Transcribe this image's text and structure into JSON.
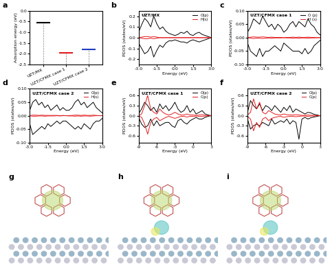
{
  "chart_data": [
    {
      "type": "level",
      "title": "a",
      "ylabel": "Adsorption energy (eV)",
      "categories": [
        "UZT/MX",
        "UZT/CFMX case 1",
        "UZT/CFMX case 2"
      ],
      "values": [
        -0.55,
        -1.95,
        -1.8
      ],
      "colors": [
        "#000000",
        "#e41a1c",
        "#1f3fbf"
      ],
      "ylim": [
        -2.5,
        0.0
      ],
      "yticks": [
        -2.5,
        -2.0,
        -1.5,
        -1.0,
        -0.5,
        0.0
      ]
    },
    {
      "type": "line",
      "title": "b",
      "annotations": [
        "UZT/MX"
      ],
      "xlabel": "Energy (eV)",
      "ylabel": "PDOS (states/eV)",
      "x": [
        -3.0,
        -2.75,
        -2.5,
        -2.25,
        -2.0,
        -1.75,
        -1.5,
        -1.25,
        -1.0,
        -0.75,
        -0.5,
        -0.25,
        0.0,
        0.25,
        0.5,
        0.75,
        1.0,
        1.25,
        1.5,
        1.75,
        2.0,
        2.25,
        2.5,
        2.75,
        3.0
      ],
      "series": [
        {
          "name": "O(p)",
          "color": "#000000",
          "values": [
            0.05,
            0.12,
            0.18,
            0.15,
            0.1,
            0.2,
            0.13,
            0.08,
            0.1,
            0.06,
            0.04,
            0.03,
            0.02,
            0.03,
            0.05,
            0.04,
            0.06,
            0.03,
            0.02,
            0.04,
            0.05,
            0.03,
            0.02,
            0.01,
            0.0
          ],
          "values_down": [
            -0.05,
            -0.1,
            -0.15,
            -0.13,
            -0.08,
            -0.18,
            -0.12,
            -0.07,
            -0.09,
            -0.05,
            -0.03,
            -0.03,
            -0.02,
            -0.03,
            -0.04,
            -0.04,
            -0.05,
            -0.03,
            -0.02,
            -0.03,
            -0.04,
            -0.03,
            -0.02,
            -0.01,
            0.0
          ]
        },
        {
          "name": "H(s)",
          "color": "#e41a1c",
          "values": [
            0.0,
            0.005,
            0.01,
            0.01,
            0.005,
            0.01,
            0.005,
            0.0,
            0.0,
            0.0,
            0.0,
            0.0,
            0.0,
            0.0,
            0.0,
            0.0,
            0.0,
            0.0,
            0.0,
            0.0,
            0.0,
            0.0,
            0.0,
            0.0,
            0.0
          ],
          "values_down": [
            0.0,
            -0.005,
            -0.01,
            -0.01,
            -0.005,
            -0.01,
            -0.005,
            0.0,
            0.0,
            0.0,
            0.0,
            0.0,
            0.0,
            0.0,
            0.0,
            0.0,
            0.0,
            0.0,
            0.0,
            0.0,
            0.0,
            0.0,
            0.0,
            0.0,
            0.0
          ]
        }
      ],
      "xlim": [
        -3.0,
        3.0
      ],
      "xticks": [
        -3.0,
        -1.5,
        0.0,
        1.5,
        3.0
      ],
      "ylim": [
        -0.25,
        0.25
      ],
      "yticks": [
        -0.2,
        -0.1,
        0.0,
        0.1,
        0.2
      ],
      "legend": "upper right"
    },
    {
      "type": "line",
      "title": "c",
      "annotations": [
        "UZT/CFMX case 1"
      ],
      "xlabel": "Energy (eV)",
      "ylabel": "PDOS (states/eV)",
      "x": [
        -3.0,
        -2.75,
        -2.5,
        -2.25,
        -2.0,
        -1.75,
        -1.5,
        -1.25,
        -1.0,
        -0.75,
        -0.5,
        -0.25,
        0.0,
        0.25,
        0.5,
        0.75,
        1.0,
        1.25,
        1.5,
        1.75,
        2.0,
        2.25,
        2.5,
        2.75,
        3.0
      ],
      "series": [
        {
          "name": "O (p)",
          "color": "#000000",
          "values": [
            0.02,
            0.04,
            0.07,
            0.06,
            0.05,
            0.08,
            0.06,
            0.04,
            0.05,
            0.03,
            0.05,
            0.04,
            0.02,
            0.03,
            0.05,
            0.06,
            0.04,
            0.06,
            0.05,
            0.04,
            0.07,
            0.05,
            0.04,
            0.02,
            0.01
          ],
          "values_down": [
            -0.02,
            -0.05,
            -0.06,
            -0.07,
            -0.04,
            -0.07,
            -0.05,
            -0.05,
            -0.04,
            -0.03,
            -0.04,
            -0.05,
            -0.02,
            -0.03,
            -0.04,
            -0.05,
            -0.05,
            -0.05,
            -0.06,
            -0.04,
            -0.06,
            -0.05,
            -0.03,
            -0.02,
            -0.01
          ]
        },
        {
          "name": "H (s)",
          "color": "#e41a1c",
          "values": [
            0.0,
            0.002,
            0.003,
            0.002,
            0.002,
            0.003,
            0.002,
            0.001,
            0.002,
            0.001,
            0.001,
            0.001,
            0.0,
            0.001,
            0.001,
            0.002,
            0.001,
            0.002,
            0.001,
            0.001,
            0.002,
            0.001,
            0.001,
            0.0,
            0.0
          ],
          "values_down": [
            0.0,
            -0.002,
            -0.003,
            -0.002,
            -0.002,
            -0.003,
            -0.002,
            -0.001,
            -0.002,
            -0.001,
            -0.001,
            -0.001,
            0.0,
            -0.001,
            -0.001,
            -0.002,
            -0.001,
            -0.002,
            -0.001,
            -0.001,
            -0.002,
            -0.001,
            -0.001,
            0.0,
            0.0
          ]
        }
      ],
      "xlim": [
        -3.0,
        3.0
      ],
      "xticks": [
        -3.0,
        -1.5,
        0.0,
        1.5,
        3.0
      ],
      "ylim": [
        -0.1,
        0.1
      ],
      "yticks": [
        {
          "value": -0.1,
          "label": "-0.10"
        },
        -0.05,
        {
          "value": 0.0,
          "label": "0.00"
        },
        0.05,
        {
          "value": 0.1,
          "label": "0.10"
        }
      ],
      "legend": "upper right"
    },
    {
      "type": "line",
      "title": "d",
      "annotations": [
        "UZT/CFMX case 2"
      ],
      "xlabel": "Energy (eV)",
      "ylabel": "PDOS (states/eV)",
      "x": [
        -3.0,
        -2.75,
        -2.5,
        -2.25,
        -2.0,
        -1.75,
        -1.5,
        -1.25,
        -1.0,
        -0.75,
        -0.5,
        -0.25,
        0.0,
        0.25,
        0.5,
        0.75,
        1.0,
        1.25,
        1.5,
        1.75,
        2.0,
        2.25,
        2.5,
        2.75,
        3.0
      ],
      "series": [
        {
          "name": "O(p)",
          "color": "#000000",
          "values": [
            0.02,
            0.05,
            0.06,
            0.04,
            0.05,
            0.03,
            0.04,
            0.02,
            0.03,
            0.04,
            0.02,
            0.03,
            0.02,
            0.02,
            0.03,
            0.05,
            0.06,
            0.04,
            0.05,
            0.03,
            0.04,
            0.05,
            0.03,
            0.02,
            0.01
          ],
          "values_down": [
            -0.03,
            -0.07,
            -0.06,
            -0.05,
            -0.04,
            -0.05,
            -0.03,
            -0.04,
            -0.03,
            -0.02,
            -0.03,
            -0.02,
            -0.02,
            -0.03,
            -0.04,
            -0.05,
            -0.04,
            -0.05,
            -0.03,
            -0.04,
            -0.05,
            -0.03,
            -0.02,
            -0.02,
            -0.01
          ]
        },
        {
          "name": "H(s)",
          "color": "#e41a1c",
          "values": [
            0.0,
            0.002,
            0.002,
            0.001,
            0.002,
            0.001,
            0.001,
            0.001,
            0.001,
            0.001,
            0.0,
            0.001,
            0.0,
            0.0,
            0.001,
            0.002,
            0.002,
            0.001,
            0.002,
            0.001,
            0.001,
            0.002,
            0.001,
            0.0,
            0.0
          ],
          "values_down": [
            0.0,
            -0.002,
            -0.002,
            -0.001,
            -0.001,
            -0.002,
            -0.001,
            -0.001,
            -0.001,
            0.0,
            -0.001,
            0.0,
            0.0,
            -0.001,
            -0.001,
            -0.002,
            -0.001,
            -0.002,
            -0.001,
            -0.001,
            -0.002,
            -0.001,
            0.0,
            0.0,
            0.0
          ]
        }
      ],
      "xlim": [
        -3.0,
        3.0
      ],
      "xticks": [
        -3.0,
        -1.5,
        0.0,
        1.5,
        3.0
      ],
      "ylim": [
        -0.1,
        0.1
      ],
      "yticks": [
        {
          "value": -0.1,
          "label": "-0.10"
        },
        -0.05,
        {
          "value": 0.0,
          "label": "0.00"
        },
        0.05,
        {
          "value": 0.1,
          "label": "0.10"
        }
      ],
      "legend": "upper right"
    },
    {
      "type": "line",
      "title": "e",
      "annotations": [
        "UZT/CFMX case 1"
      ],
      "xlabel": "Energy (eV)",
      "ylabel": "PDOS (states/eV)",
      "x": [
        -9.0,
        -8.5,
        -8.0,
        -7.5,
        -7.0,
        -6.5,
        -6.0,
        -5.5,
        -5.0,
        -4.5,
        -4.0,
        -3.5,
        -3.0,
        -2.5,
        -2.0,
        -1.5,
        -1.0,
        -0.5,
        0.0,
        0.5,
        1.0,
        1.5,
        2.0,
        2.5,
        3.0
      ],
      "series": [
        {
          "name": "O(p)",
          "color": "#000000",
          "values": [
            0.05,
            0.2,
            0.4,
            0.3,
            0.15,
            0.25,
            0.1,
            0.35,
            0.2,
            0.3,
            0.15,
            0.25,
            0.4,
            0.2,
            0.1,
            0.15,
            0.3,
            0.1,
            0.2,
            0.05,
            0.1,
            0.15,
            0.05,
            0.02,
            0.0
          ],
          "values_down": [
            -0.05,
            -0.25,
            -0.35,
            -0.3,
            -0.1,
            -0.3,
            -0.15,
            -0.3,
            -0.25,
            -0.2,
            -0.2,
            -0.3,
            -0.35,
            -0.15,
            -0.1,
            -0.2,
            -0.25,
            -0.15,
            -0.1,
            -0.05,
            -0.1,
            -0.1,
            -0.05,
            -0.02,
            0.0
          ]
        },
        {
          "name": "C(p)",
          "color": "#e41a1c",
          "values": [
            0.0,
            0.05,
            0.3,
            0.6,
            0.2,
            0.1,
            0.05,
            0.2,
            0.1,
            0.05,
            0.02,
            0.05,
            0.1,
            0.05,
            0.02,
            0.02,
            0.05,
            0.02,
            0.02,
            0.01,
            0.02,
            0.03,
            0.01,
            0.0,
            0.0
          ],
          "values_down": [
            0.0,
            -0.05,
            -0.25,
            -0.55,
            -0.2,
            -0.1,
            -0.05,
            -0.15,
            -0.1,
            -0.05,
            -0.02,
            -0.05,
            -0.08,
            -0.05,
            -0.02,
            -0.02,
            -0.04,
            -0.02,
            -0.02,
            -0.01,
            -0.02,
            -0.02,
            -0.01,
            0.0,
            0.0
          ]
        }
      ],
      "xlim": [
        -9.0,
        3.0
      ],
      "xticks": [
        -9,
        -6,
        -3,
        0,
        3
      ],
      "ylim": [
        -0.8,
        0.8
      ],
      "yticks": [
        -0.6,
        -0.3,
        0.0,
        0.3,
        0.6
      ],
      "legend": "upper right"
    },
    {
      "type": "line",
      "title": "f",
      "annotations": [
        "UZT/CFMX case 2"
      ],
      "xlabel": "Energy (eV)",
      "ylabel": "PDOS (states/eV)",
      "x": [
        -9.0,
        -8.5,
        -8.0,
        -7.5,
        -7.0,
        -6.5,
        -6.0,
        -5.5,
        -5.0,
        -4.5,
        -4.0,
        -3.5,
        -3.0,
        -2.5,
        -2.0,
        -1.5,
        -1.0,
        -0.5,
        0.0,
        0.5,
        1.0,
        1.5,
        2.0,
        2.5,
        3.0
      ],
      "series": [
        {
          "name": "O(p)",
          "color": "#000000",
          "values": [
            0.1,
            0.45,
            0.3,
            0.2,
            0.35,
            0.15,
            0.3,
            0.25,
            0.15,
            0.3,
            0.2,
            0.1,
            0.25,
            0.15,
            0.3,
            0.1,
            0.2,
            0.15,
            0.1,
            0.05,
            0.1,
            0.08,
            0.04,
            0.02,
            0.0
          ],
          "values_down": [
            -0.1,
            -0.4,
            -0.3,
            -0.25,
            -0.3,
            -0.2,
            -0.25,
            -0.3,
            -0.1,
            -0.25,
            -0.2,
            -0.15,
            -0.2,
            -0.1,
            -0.25,
            -0.15,
            -0.2,
            -0.7,
            -0.1,
            -0.05,
            -0.1,
            -0.06,
            -0.04,
            -0.02,
            0.0
          ]
        },
        {
          "name": "C(p)",
          "color": "#e41a1c",
          "values": [
            0.02,
            0.1,
            0.5,
            0.2,
            0.4,
            0.1,
            0.05,
            0.15,
            0.1,
            0.05,
            0.03,
            0.02,
            0.05,
            0.03,
            0.02,
            0.02,
            0.03,
            0.02,
            0.01,
            0.01,
            0.02,
            0.01,
            0.01,
            0.0,
            0.0
          ],
          "values_down": [
            -0.02,
            -0.1,
            -0.45,
            -0.2,
            -0.35,
            -0.1,
            -0.05,
            -0.15,
            -0.08,
            -0.05,
            -0.03,
            -0.02,
            -0.05,
            -0.03,
            -0.02,
            -0.02,
            -0.03,
            -0.02,
            -0.01,
            -0.01,
            -0.02,
            -0.01,
            -0.01,
            0.0,
            0.0
          ]
        }
      ],
      "xlim": [
        -9.0,
        3.0
      ],
      "xticks": [
        -9,
        -6,
        -3,
        0,
        3
      ],
      "ylim": [
        -0.8,
        0.8
      ],
      "yticks": [
        -0.6,
        -0.3,
        0.0,
        0.3,
        0.6
      ],
      "legend": "upper right"
    }
  ],
  "images": [
    {
      "title": "g"
    },
    {
      "title": "h"
    },
    {
      "title": "i"
    }
  ]
}
